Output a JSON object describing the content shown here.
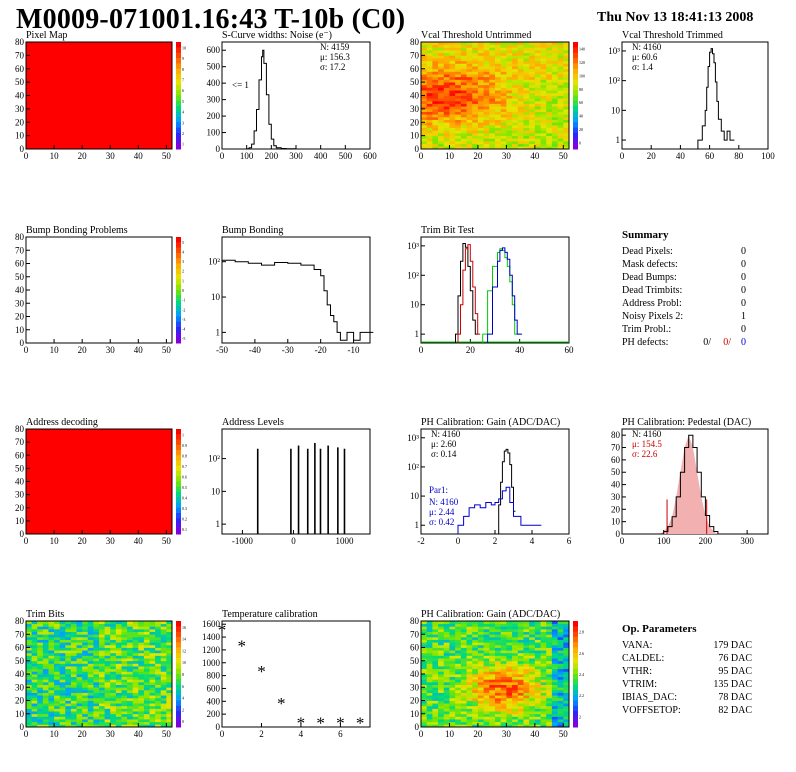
{
  "header": {
    "title": "M0009-071001.16:43 T-10b (C0)",
    "date": "Thu Nov 13 18:41:13 2008"
  },
  "colors": {
    "red_map": "#ff0000",
    "black": "#000000",
    "red": "#cc0000",
    "green": "#00cc00",
    "blue": "#0000cc"
  },
  "chart_data": [
    {
      "id": "pixel-map",
      "type": "heatmap",
      "title": "Pixel Map",
      "xlim": [
        0,
        52
      ],
      "ylim": [
        0,
        80
      ],
      "x_ticks": [
        0,
        10,
        20,
        30,
        40,
        50
      ],
      "y_ticks": [
        0,
        10,
        20,
        30,
        40,
        50,
        60,
        70,
        80
      ],
      "fill": "uniform",
      "palette_ticks": [
        "10",
        "9",
        "8",
        "7",
        "6",
        "5",
        "4",
        "3",
        "2",
        "1"
      ]
    },
    {
      "id": "scurve-noise",
      "type": "line",
      "title": "S-Curve widths: Noise (e⁻)",
      "xlim": [
        0,
        600
      ],
      "ylim": [
        0,
        650
      ],
      "x_ticks": [
        0,
        100,
        200,
        300,
        400,
        500,
        600
      ],
      "y_ticks": [
        0,
        100,
        200,
        300,
        400,
        500,
        600
      ],
      "x": [
        80,
        100,
        110,
        120,
        130,
        140,
        150,
        160,
        165,
        170,
        180,
        190,
        200,
        210,
        220,
        240,
        260,
        300
      ],
      "y": [
        0,
        2,
        8,
        30,
        110,
        240,
        420,
        560,
        600,
        520,
        330,
        150,
        60,
        20,
        8,
        3,
        1,
        0
      ],
      "stats": {
        "n": "N: 4159",
        "mu": "μ: 156.3",
        "sigma": "σ: 17.2"
      },
      "annotation": "<= 1"
    },
    {
      "id": "vcal-untrimmed",
      "type": "heatmap",
      "title": "Vcal Threshold Untrimmed",
      "xlim": [
        0,
        52
      ],
      "ylim": [
        0,
        80
      ],
      "x_ticks": [
        0,
        10,
        20,
        30,
        40,
        50
      ],
      "y_ticks": [
        0,
        10,
        20,
        30,
        40,
        50,
        60,
        70,
        80
      ],
      "palette_ticks": [
        "140",
        "120",
        "100",
        "80",
        "60",
        "40",
        "20",
        "0"
      ]
    },
    {
      "id": "vcal-trimmed",
      "type": "line",
      "title": "Vcal Threshold Trimmed",
      "xlim": [
        0,
        100
      ],
      "log_y": true,
      "ylim": [
        0.5,
        2000
      ],
      "x_ticks": [
        0,
        20,
        40,
        60,
        80,
        100
      ],
      "y_ticks": [
        "1",
        "10",
        "10²",
        "10³"
      ],
      "x": [
        52,
        55,
        57,
        58,
        59,
        60,
        61,
        62,
        63,
        64,
        65,
        66,
        68,
        70,
        72,
        74
      ],
      "y": [
        1,
        3,
        10,
        60,
        300,
        900,
        1200,
        800,
        400,
        90,
        20,
        5,
        2,
        1,
        2,
        1
      ],
      "stats": {
        "n": "N: 4160",
        "mu": "μ: 60.6",
        "sigma": "σ:  1.4"
      }
    },
    {
      "id": "bump-bonding-problems",
      "type": "heatmap",
      "title": "Bump Bonding Problems",
      "xlim": [
        0,
        52
      ],
      "ylim": [
        0,
        80
      ],
      "x_ticks": [
        0,
        10,
        20,
        30,
        40,
        50
      ],
      "y_ticks": [
        0,
        10,
        20,
        30,
        40,
        50,
        60,
        70,
        80
      ],
      "fill": "empty",
      "palette_ticks": [
        "5",
        "4",
        "3",
        "2",
        "1",
        "0",
        "-1",
        "-2",
        "-3",
        "-4",
        "-5"
      ]
    },
    {
      "id": "bump-bonding",
      "type": "line",
      "title": "Bump Bonding",
      "xlim": [
        -50,
        -5
      ],
      "log_y": true,
      "ylim": [
        0.5,
        500
      ],
      "x_ticks": [
        -50,
        -40,
        -30,
        -20,
        -10
      ],
      "y_ticks": [
        "1",
        "10",
        "10²"
      ],
      "x": [
        -50,
        -46,
        -42,
        -38,
        -34,
        -30,
        -26,
        -22,
        -20,
        -19,
        -18,
        -17,
        -16,
        -15,
        -14,
        -12,
        -10,
        -8
      ],
      "y": [
        110,
        100,
        90,
        80,
        95,
        90,
        80,
        60,
        40,
        15,
        6,
        3,
        2,
        1,
        0.6,
        1,
        0.6,
        1
      ]
    },
    {
      "id": "trim-bit-test",
      "type": "line",
      "title": "Trim Bit Test",
      "xlim": [
        0,
        60
      ],
      "log_y": true,
      "ylim": [
        0.5,
        2000
      ],
      "x_ticks": [
        0,
        20,
        40,
        60
      ],
      "y_ticks": [
        "1",
        "10",
        "10²",
        "10³"
      ],
      "series": [
        {
          "color": "#000000",
          "x": [
            14,
            15,
            16,
            17,
            18,
            19,
            20,
            21,
            22
          ],
          "y": [
            1,
            20,
            300,
            1200,
            900,
            200,
            30,
            3,
            1
          ]
        },
        {
          "color": "#cc0000",
          "x": [
            15,
            16,
            17,
            18,
            19,
            20,
            21,
            22,
            23
          ],
          "y": [
            1,
            10,
            150,
            800,
            1100,
            300,
            40,
            5,
            1
          ]
        },
        {
          "color": "#00cc00",
          "x": [
            25,
            27,
            29,
            31,
            32,
            33,
            34,
            35,
            36,
            37,
            38
          ],
          "y": [
            1,
            30,
            200,
            600,
            800,
            700,
            400,
            200,
            60,
            10,
            1
          ]
        },
        {
          "color": "#0000cc",
          "x": [
            27,
            29,
            31,
            32,
            33,
            34,
            35,
            36,
            37,
            38,
            39
          ],
          "y": [
            1,
            40,
            300,
            700,
            850,
            600,
            350,
            100,
            20,
            3,
            1
          ]
        }
      ]
    },
    {
      "id": "address-decoding",
      "type": "heatmap",
      "title": "Address decoding",
      "xlim": [
        0,
        52
      ],
      "ylim": [
        0,
        80
      ],
      "x_ticks": [
        0,
        10,
        20,
        30,
        40,
        50
      ],
      "y_ticks": [
        0,
        10,
        20,
        30,
        40,
        50,
        60,
        70,
        80
      ],
      "fill": "uniform",
      "palette_ticks": [
        "1",
        "0.9",
        "0.8",
        "0.7",
        "0.6",
        "0.5",
        "0.4",
        "0.3",
        "0.2",
        "0.1"
      ]
    },
    {
      "id": "address-levels",
      "type": "line",
      "title": "Address Levels",
      "xlim": [
        -1400,
        1500
      ],
      "log_y": true,
      "ylim": [
        0.5,
        800
      ],
      "x_ticks": [
        -1000,
        0,
        1000
      ],
      "y_ticks": [
        "1",
        "10",
        "10²"
      ],
      "spikes": [
        -700,
        -50,
        100,
        280,
        420,
        530,
        680,
        870,
        1000
      ],
      "heights": [
        200,
        200,
        250,
        200,
        300,
        200,
        250,
        220,
        200
      ]
    },
    {
      "id": "ph-gain",
      "type": "line",
      "title": "PH Calibration: Gain (ADC/DAC)",
      "xlim": [
        -2,
        6
      ],
      "log_y": true,
      "ylim": [
        0.5,
        2000
      ],
      "x_ticks": [
        -2,
        0,
        2,
        4,
        6
      ],
      "y_ticks": [
        "1",
        "10",
        "10²",
        "10³"
      ],
      "series": [
        {
          "color": "#000000",
          "x": [
            2.2,
            2.3,
            2.4,
            2.5,
            2.6,
            2.7,
            2.8,
            2.9,
            3.0
          ],
          "y": [
            5,
            30,
            150,
            350,
            400,
            300,
            120,
            20,
            3
          ]
        },
        {
          "color": "#0000cc",
          "x": [
            0,
            0.3,
            0.6,
            0.9,
            1.2,
            1.5,
            1.8,
            2.0,
            2.2,
            2.4,
            2.6,
            2.8,
            3.0,
            3.4,
            3.8,
            4.2
          ],
          "y": [
            1,
            2,
            4,
            5,
            4,
            6,
            5,
            6,
            8,
            15,
            20,
            6,
            2,
            1,
            1,
            1
          ]
        }
      ],
      "stats": {
        "n": "N: 4160",
        "mu": "μ: 2.60",
        "sigma": "σ: 0.14"
      },
      "stats2": {
        "label": "Par1:",
        "n": "N: 4160",
        "mu": "μ: 2.44",
        "sigma": "σ: 0.42"
      }
    },
    {
      "id": "ph-pedestal",
      "type": "line",
      "title": "PH Calibration: Pedestal (DAC)",
      "xlim": [
        0,
        350
      ],
      "ylim": [
        0,
        85
      ],
      "x_ticks": [
        0,
        100,
        200,
        300
      ],
      "y_ticks": [
        0,
        10,
        20,
        30,
        40,
        50,
        60,
        70,
        80
      ],
      "x": [
        90,
        100,
        110,
        120,
        130,
        140,
        150,
        160,
        170,
        180,
        190,
        200,
        210,
        220,
        230
      ],
      "y": [
        0,
        2,
        6,
        14,
        30,
        50,
        70,
        80,
        70,
        50,
        30,
        15,
        6,
        2,
        0
      ],
      "cuts": [
        108,
        203
      ],
      "stats": {
        "n": "N: 4160",
        "mu": "μ: 154.5",
        "sigma": "σ: 22.6"
      }
    },
    {
      "id": "trim-bits",
      "type": "heatmap",
      "title": "Trim Bits",
      "xlim": [
        0,
        52
      ],
      "ylim": [
        0,
        80
      ],
      "x_ticks": [
        0,
        10,
        20,
        30,
        40,
        50
      ],
      "y_ticks": [
        0,
        10,
        20,
        30,
        40,
        50,
        60,
        70,
        80
      ],
      "palette_ticks": [
        "16",
        "14",
        "12",
        "10",
        "8",
        "6",
        "4",
        "2",
        "0"
      ]
    },
    {
      "id": "temperature-calibration",
      "type": "scatter",
      "title": "Temperature calibration",
      "xlim": [
        0,
        7.5
      ],
      "ylim": [
        0,
        1650
      ],
      "x_ticks": [
        0,
        2,
        4,
        6
      ],
      "y_ticks": [
        0,
        200,
        400,
        600,
        800,
        1000,
        1200,
        1400,
        1600
      ],
      "x": [
        0,
        1,
        2,
        3,
        4,
        5,
        6,
        7
      ],
      "y": [
        1520,
        1270,
        870,
        370,
        70,
        70,
        70,
        70
      ]
    },
    {
      "id": "ph-gain-map",
      "type": "heatmap",
      "title": "PH Calibration: Gain (ADC/DAC)",
      "xlim": [
        0,
        52
      ],
      "ylim": [
        0,
        80
      ],
      "x_ticks": [
        0,
        10,
        20,
        30,
        40,
        50
      ],
      "y_ticks": [
        0,
        10,
        20,
        30,
        40,
        50,
        60,
        70,
        80
      ],
      "palette_ticks": [
        "2.8",
        "2.6",
        "2.4",
        "2.2",
        "2"
      ]
    }
  ],
  "summary": {
    "title": "Summary",
    "rows": [
      {
        "label": "Dead Pixels:",
        "value": "0"
      },
      {
        "label": "Mask defects:",
        "value": "0"
      },
      {
        "label": "Dead Bumps:",
        "value": "0"
      },
      {
        "label": "Dead Trimbits:",
        "value": "0"
      },
      {
        "label": "Address Probl:",
        "value": "0"
      },
      {
        "label": "Noisy Pixels 2:",
        "value": "1"
      },
      {
        "label": "Trim Probl.:",
        "value": "0"
      }
    ],
    "ph_defects": {
      "label": "PH defects:",
      "v1": "0/",
      "v2": "0/",
      "v3": "0"
    }
  },
  "op_params": {
    "title": "Op. Parameters",
    "rows": [
      {
        "label": "VANA:",
        "value": "179 DAC"
      },
      {
        "label": "CALDEL:",
        "value": "76 DAC"
      },
      {
        "label": "VTHR:",
        "value": "95 DAC"
      },
      {
        "label": "VTRIM:",
        "value": "135 DAC"
      },
      {
        "label": "IBIAS_DAC:",
        "value": "78 DAC"
      },
      {
        "label": "VOFFSETOP:",
        "value": "82 DAC"
      }
    ]
  }
}
